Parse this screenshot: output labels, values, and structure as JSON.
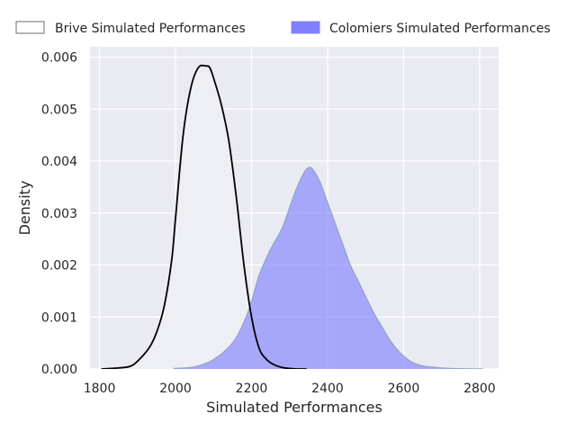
{
  "chart_data": {
    "type": "area",
    "xlabel": "Simulated Performances",
    "ylabel": "Density",
    "xlim": [
      1775,
      2850
    ],
    "ylim": [
      0,
      0.0062
    ],
    "x_ticks": [
      1800,
      2000,
      2200,
      2400,
      2600,
      2800
    ],
    "x_tick_labels": [
      "1800",
      "2000",
      "2200",
      "2400",
      "2600",
      "2800"
    ],
    "y_ticks": [
      0,
      0.001,
      0.002,
      0.003,
      0.004,
      0.005,
      0.006
    ],
    "y_tick_labels": [
      "0.000",
      "0.001",
      "0.002",
      "0.003",
      "0.004",
      "0.005",
      "0.006"
    ],
    "grid": true,
    "legend_position": "top",
    "background_color": "#eaeaf2",
    "series": [
      {
        "name": "Brive Simulated Performances",
        "style": "line",
        "color": "#000000",
        "x": [
          1805,
          1850,
          1880,
          1900,
          1930,
          1950,
          1970,
          1990,
          2000,
          2020,
          2040,
          2060,
          2080,
          2090,
          2100,
          2120,
          2140,
          2160,
          2180,
          2200,
          2220,
          2240,
          2260,
          2280,
          2300,
          2320,
          2340,
          2345
        ],
        "y": [
          0,
          2e-05,
          5e-05,
          0.00015,
          0.0004,
          0.0007,
          0.0012,
          0.0021,
          0.0029,
          0.0045,
          0.0054,
          0.0058,
          0.00583,
          0.0058,
          0.0056,
          0.0051,
          0.0044,
          0.0033,
          0.002,
          0.001,
          0.0004,
          0.00018,
          8e-05,
          3e-05,
          1e-05,
          0,
          0,
          0
        ]
      },
      {
        "name": "Colomiers Simulated Performances",
        "style": "area",
        "color": "#8080ff",
        "x": [
          1995,
          2050,
          2100,
          2150,
          2180,
          2200,
          2220,
          2250,
          2280,
          2300,
          2320,
          2340,
          2350,
          2360,
          2380,
          2400,
          2420,
          2440,
          2460,
          2480,
          2500,
          2520,
          2540,
          2560,
          2580,
          2600,
          2620,
          2650,
          2700,
          2750,
          2810
        ],
        "y": [
          1e-05,
          4e-05,
          0.00018,
          0.0005,
          0.0009,
          0.0013,
          0.0018,
          0.0023,
          0.0027,
          0.0031,
          0.0035,
          0.0038,
          0.00387,
          0.00385,
          0.0036,
          0.0032,
          0.0028,
          0.0024,
          0.002,
          0.0017,
          0.0014,
          0.0011,
          0.00085,
          0.0006,
          0.0004,
          0.00025,
          0.00014,
          6e-05,
          2e-05,
          5e-06,
          0
        ]
      }
    ]
  }
}
